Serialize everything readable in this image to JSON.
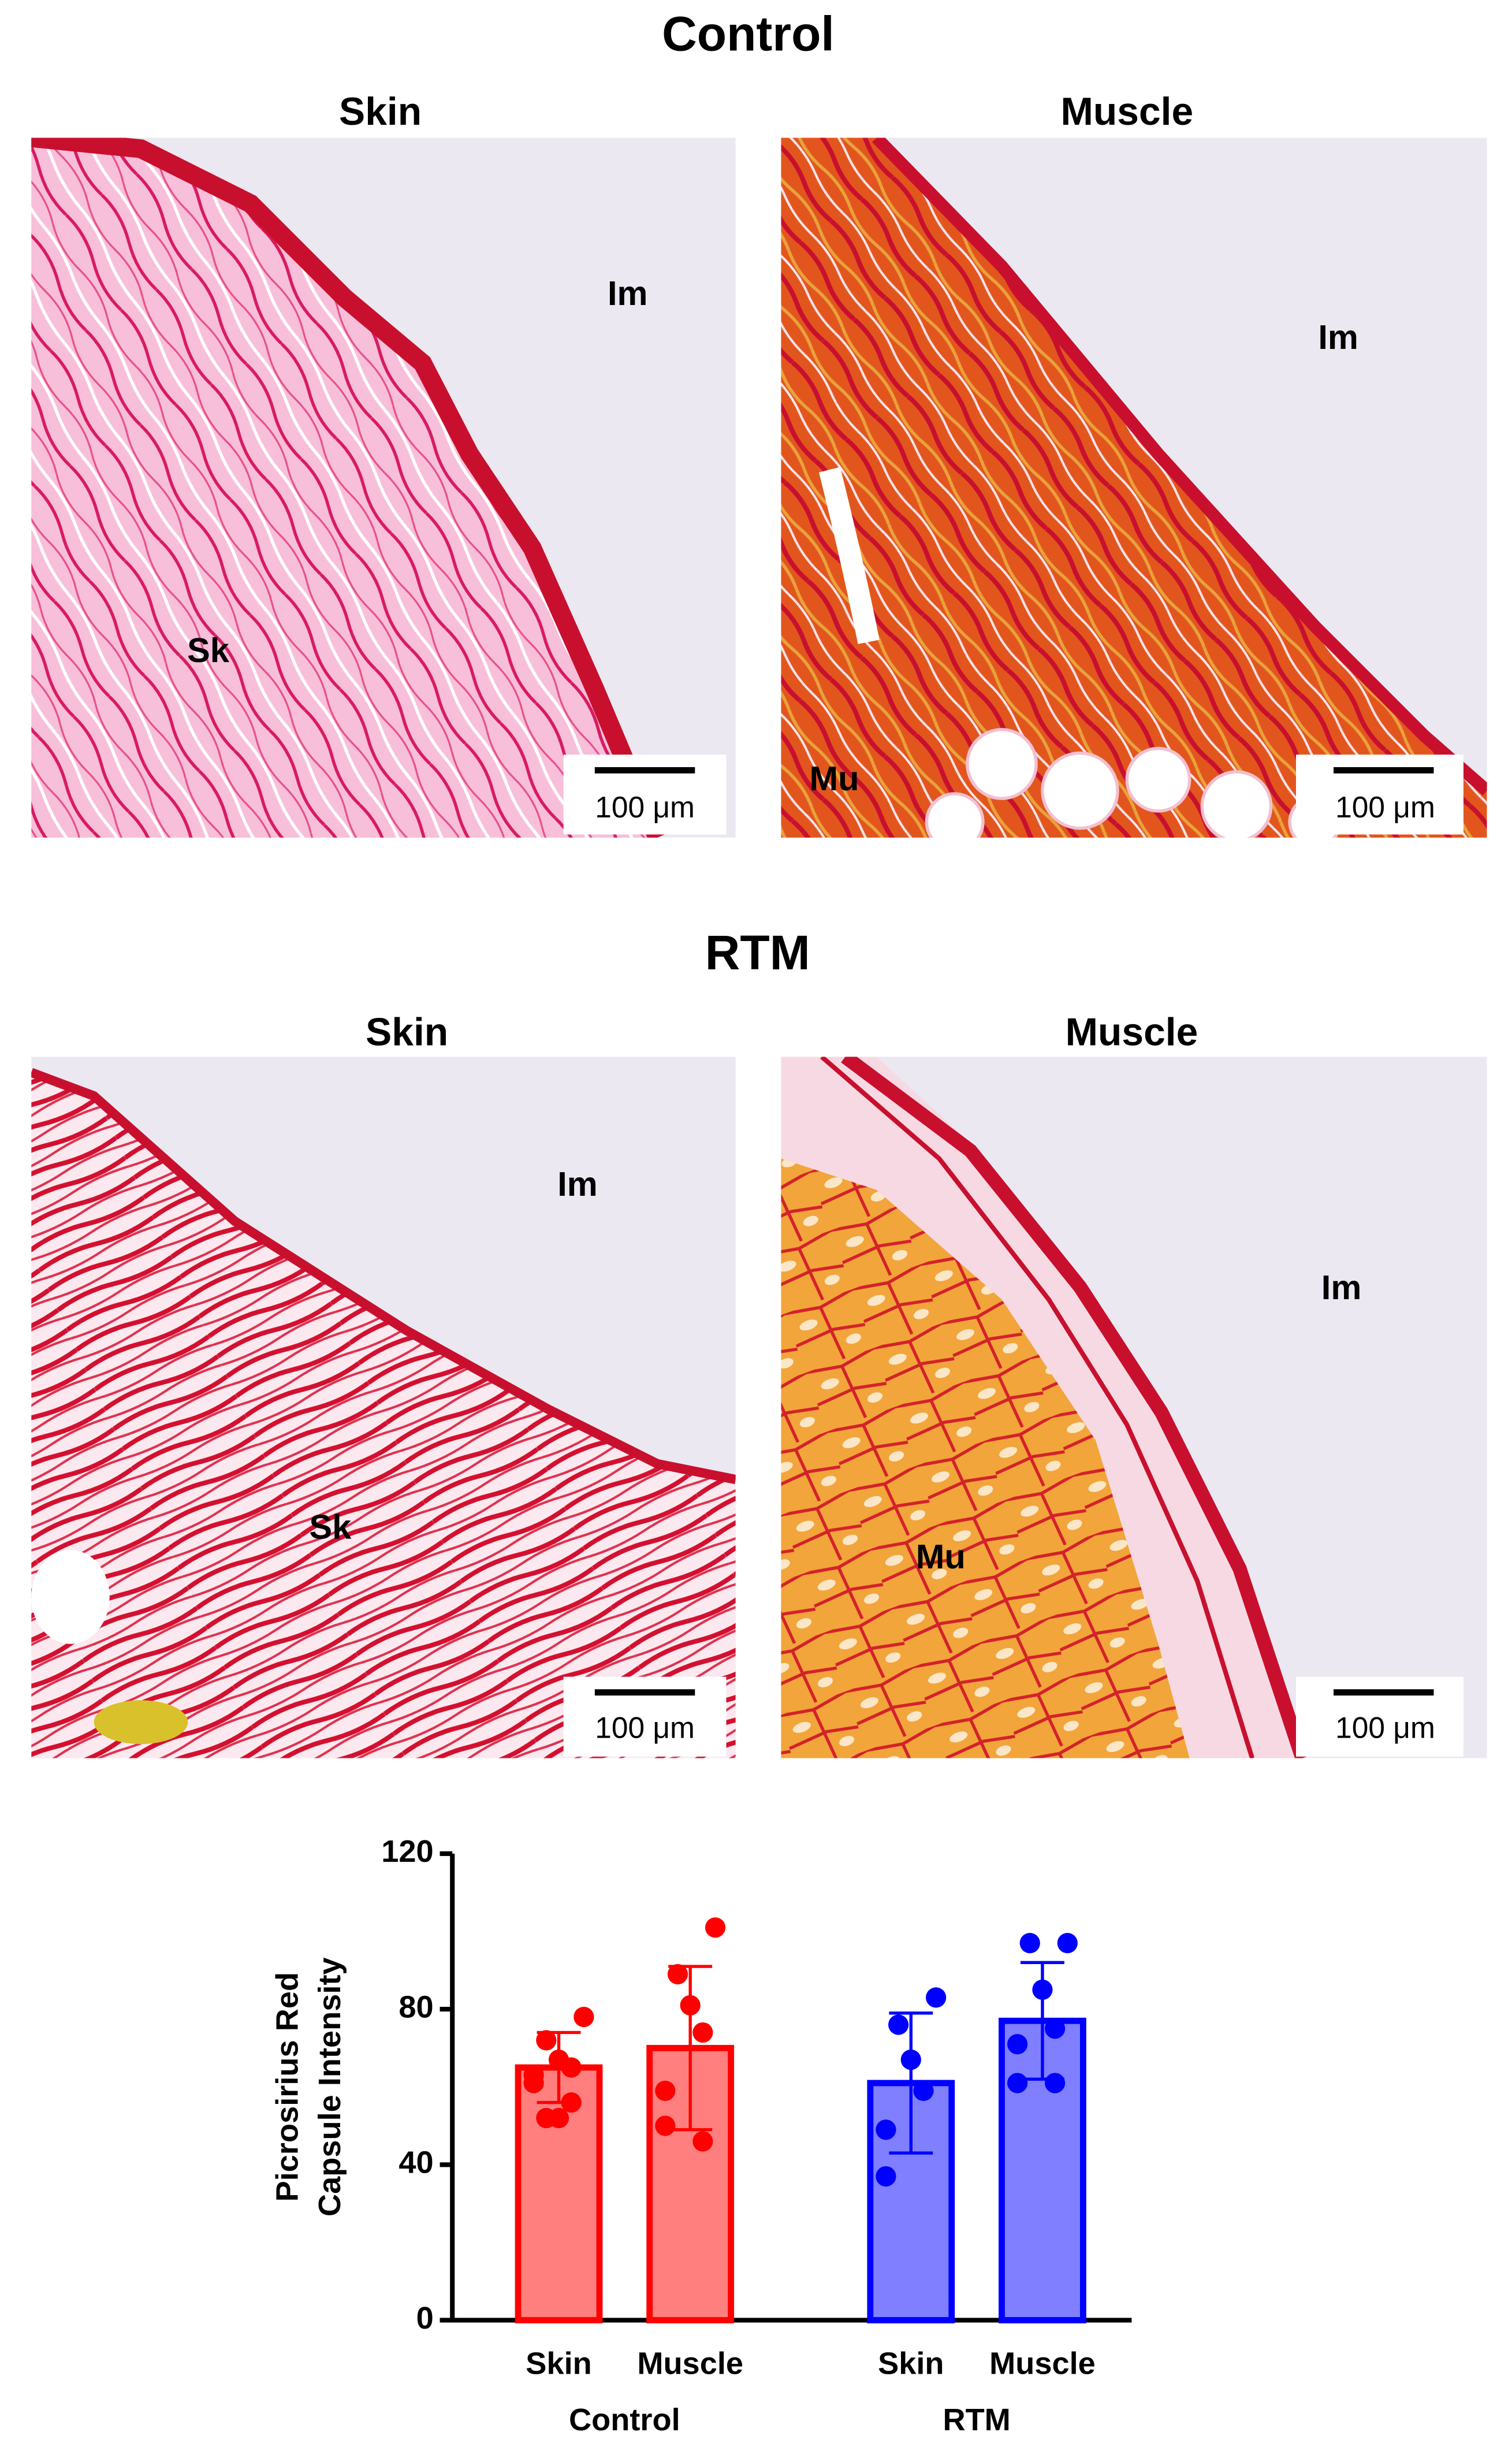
{
  "sections": [
    {
      "title": "Control",
      "panels": [
        {
          "title": "Skin",
          "labels": [
            "Im",
            "Sk"
          ],
          "scale_bar": "100 μm"
        },
        {
          "title": "Muscle",
          "labels": [
            "Im",
            "Mu"
          ],
          "scale_bar": "100 μm"
        }
      ]
    },
    {
      "title": "RTM",
      "panels": [
        {
          "title": "Skin",
          "labels": [
            "Im",
            "Sk"
          ],
          "scale_bar": "100 μm"
        },
        {
          "title": "Muscle",
          "labels": [
            "Im",
            "Mu"
          ],
          "scale_bar": "100 μm"
        }
      ]
    }
  ],
  "chart_data": {
    "type": "bar",
    "ylabel": [
      "Picrosirius Red",
      "Capsule Intensity"
    ],
    "ylim": [
      0,
      120
    ],
    "yticks": [
      0,
      40,
      80,
      120
    ],
    "groups": [
      {
        "name": "Control",
        "color": "#ff0000",
        "categories": [
          "Skin",
          "Muscle"
        ],
        "values": [
          65,
          70
        ],
        "errors": [
          9,
          21
        ],
        "points": [
          [
            78,
            72,
            67,
            65,
            63,
            61,
            56,
            52,
            52
          ],
          [
            101,
            89,
            81,
            74,
            59,
            50,
            46
          ]
        ]
      },
      {
        "name": "RTM",
        "color": "#0000ff",
        "categories": [
          "Skin",
          "Muscle"
        ],
        "values": [
          61,
          77
        ],
        "errors": [
          18,
          15
        ],
        "points": [
          [
            83,
            76,
            67,
            59,
            49,
            37
          ],
          [
            97,
            97,
            85,
            75,
            71,
            61,
            61
          ]
        ]
      }
    ]
  }
}
